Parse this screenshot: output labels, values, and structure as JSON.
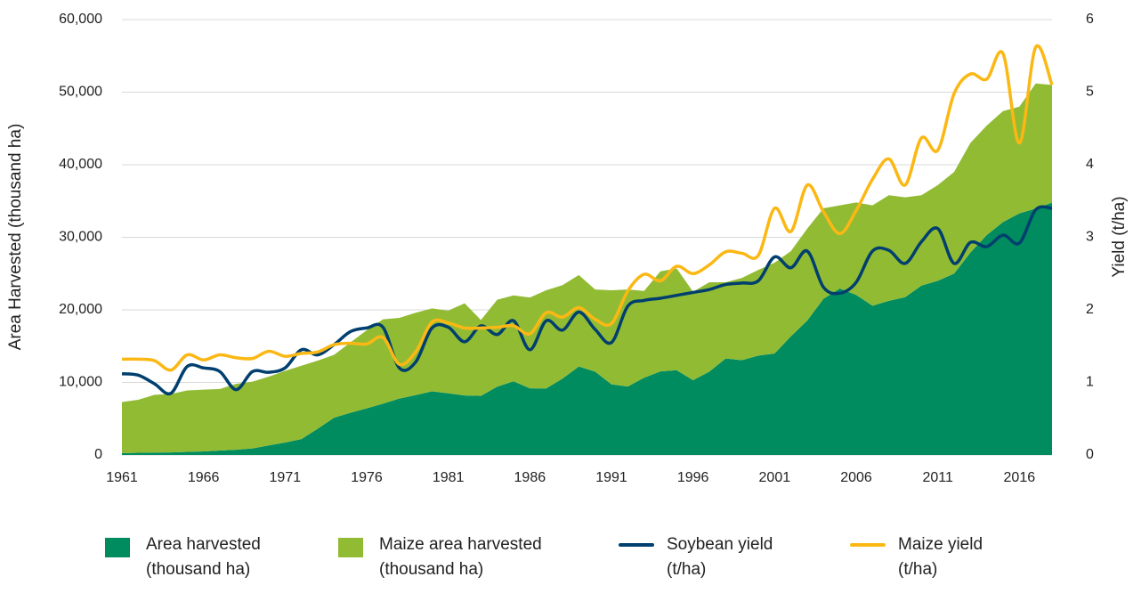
{
  "chart_data": {
    "type": "area",
    "y_label": "Area Harvested (thousand ha)",
    "y2_label": "Yield (t/ha)",
    "x": [
      1961,
      1962,
      1963,
      1964,
      1965,
      1966,
      1967,
      1968,
      1969,
      1970,
      1971,
      1972,
      1973,
      1974,
      1975,
      1976,
      1977,
      1978,
      1979,
      1980,
      1981,
      1982,
      1983,
      1984,
      1985,
      1986,
      1987,
      1988,
      1989,
      1990,
      1991,
      1992,
      1993,
      1994,
      1995,
      1996,
      1997,
      1998,
      1999,
      2000,
      2001,
      2002,
      2003,
      2004,
      2005,
      2006,
      2007,
      2008,
      2009,
      2010,
      2011,
      2012,
      2013,
      2014,
      2015,
      2016,
      2017,
      2018
    ],
    "xlim": [
      1961,
      2018
    ],
    "xticks": [
      1961,
      1966,
      1971,
      1976,
      1981,
      1986,
      1991,
      1996,
      2001,
      2006,
      2011,
      2016
    ],
    "ylim": [
      0,
      60000
    ],
    "yticks": [
      0,
      {
        "value": 10000,
        "label": "10,000"
      },
      {
        "value": 20000,
        "label": "20,000"
      },
      {
        "value": 30000,
        "label": "30,000"
      },
      {
        "value": 40000,
        "label": "40,000"
      },
      {
        "value": 50000,
        "label": "50,000"
      },
      {
        "value": 60000,
        "label": "60,000"
      }
    ],
    "y2lim": [
      0,
      6
    ],
    "y2ticks": [
      0,
      1,
      2,
      3,
      4,
      5,
      6
    ],
    "grid": true,
    "stacked": true,
    "legend": "bottom",
    "series": [
      {
        "name": "Area harvested (thousand ha)",
        "type": "area",
        "color": "#008c5f",
        "values": [
          240,
          310,
          340,
          360,
          430,
          490,
          610,
          720,
          900,
          1320,
          1720,
          2190,
          3620,
          5140,
          5820,
          6420,
          7070,
          7780,
          8250,
          8770,
          8500,
          8200,
          8140,
          9420,
          10150,
          9180,
          9170,
          10520,
          12200,
          11490,
          9740,
          9440,
          10640,
          11520,
          11680,
          10300,
          11490,
          13300,
          13060,
          13690,
          13990,
          16360,
          18520,
          21540,
          22950,
          22050,
          20570,
          21250,
          21750,
          23340,
          24000,
          25000,
          27900,
          30300,
          32100,
          33300,
          33960,
          34780
        ]
      },
      {
        "name": "Maize area harvested (thousand ha)",
        "type": "area",
        "color": "#92bb34",
        "values": [
          7060,
          7290,
          7960,
          8040,
          8470,
          8510,
          8490,
          9080,
          9200,
          9480,
          9880,
          10110,
          9380,
          8660,
          9680,
          10780,
          11630,
          11120,
          11350,
          11430,
          11400,
          12700,
          10460,
          11980,
          11850,
          12520,
          13530,
          12880,
          12600,
          11310,
          12960,
          13360,
          11960,
          13780,
          14020,
          12200,
          12310,
          10500,
          11340,
          11810,
          12510,
          11740,
          12680,
          12460,
          11450,
          12750,
          13830,
          14550,
          13750,
          12460,
          13200,
          14000,
          15100,
          15100,
          15300,
          14700,
          17240,
          16220
        ]
      },
      {
        "name": "Soybean yield (t/ha)",
        "type": "line",
        "axis": "y2",
        "color": "#003f6e",
        "values": [
          1.12,
          1.1,
          0.98,
          0.85,
          1.22,
          1.2,
          1.15,
          0.9,
          1.15,
          1.14,
          1.2,
          1.45,
          1.38,
          1.52,
          1.7,
          1.75,
          1.76,
          1.2,
          1.28,
          1.75,
          1.76,
          1.56,
          1.78,
          1.66,
          1.85,
          1.45,
          1.85,
          1.72,
          1.97,
          1.73,
          1.55,
          2.05,
          2.13,
          2.16,
          2.2,
          2.24,
          2.28,
          2.35,
          2.37,
          2.4,
          2.73,
          2.58,
          2.81,
          2.31,
          2.23,
          2.38,
          2.81,
          2.82,
          2.64,
          2.94,
          3.12,
          2.64,
          2.93,
          2.87,
          3.03,
          2.92,
          3.38,
          3.4
        ]
      },
      {
        "name": "Maize yield (t/ha)",
        "type": "line",
        "axis": "y2",
        "color": "#fbb814",
        "values": [
          1.32,
          1.32,
          1.3,
          1.17,
          1.38,
          1.31,
          1.38,
          1.34,
          1.33,
          1.43,
          1.36,
          1.4,
          1.42,
          1.52,
          1.54,
          1.53,
          1.62,
          1.25,
          1.42,
          1.83,
          1.82,
          1.75,
          1.75,
          1.76,
          1.78,
          1.67,
          1.96,
          1.9,
          2.03,
          1.87,
          1.81,
          2.26,
          2.49,
          2.4,
          2.6,
          2.5,
          2.62,
          2.8,
          2.78,
          2.75,
          3.4,
          3.08,
          3.72,
          3.35,
          3.05,
          3.37,
          3.8,
          4.08,
          3.72,
          4.37,
          4.2,
          4.98,
          5.25,
          5.18,
          5.53,
          4.3,
          5.62,
          5.1
        ]
      }
    ]
  }
}
